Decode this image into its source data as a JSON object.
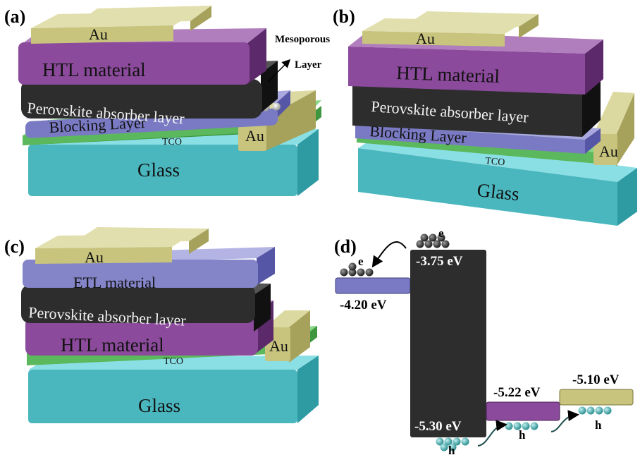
{
  "panels": {
    "a": {
      "label": "(a)",
      "layers": {
        "au": "Au",
        "htl": "HTL material",
        "perovskite": "Perovskite absorber layer",
        "blocking": "Blocking Layer",
        "tco": "TCO",
        "glass": "Glass",
        "au_side": "Au"
      },
      "mesoporous_line1": "Mesoporous",
      "mesoporous_line2": "Layer"
    },
    "b": {
      "label": "(b)",
      "layers": {
        "au": "Au",
        "htl": "HTL material",
        "perovskite": "Perovskite absorber layer",
        "blocking": "Blocking Layer",
        "tco": "TCO",
        "glass": "Glass",
        "au_side": "Au"
      }
    },
    "c": {
      "label": "(c)",
      "layers": {
        "au": "Au",
        "etl": "ETL material",
        "perovskite": "Perovskite absorber layer",
        "htl": "HTL material",
        "tco": "TCO",
        "glass": "Glass",
        "au_side": "Au"
      }
    },
    "d": {
      "label": "(d)",
      "levels": {
        "etl": "-4.20 eV",
        "perovskite_cb": "-3.75 eV",
        "perovskite_vb": "-5.30 eV",
        "htl": "-5.22 eV",
        "au": "-5.10 eV"
      },
      "electron": "e",
      "hole": "h"
    }
  },
  "colors": {
    "au": "#c8c47e",
    "htl": "#8b4a9b",
    "perovskite": "#2d2d2d",
    "blocking": "#7a7ac4",
    "etl": "#8484c8",
    "tco": "#5cb85c",
    "glass": "#4ab7bf",
    "electron": "#3a3a3a",
    "hole": "#4fa8a8"
  }
}
